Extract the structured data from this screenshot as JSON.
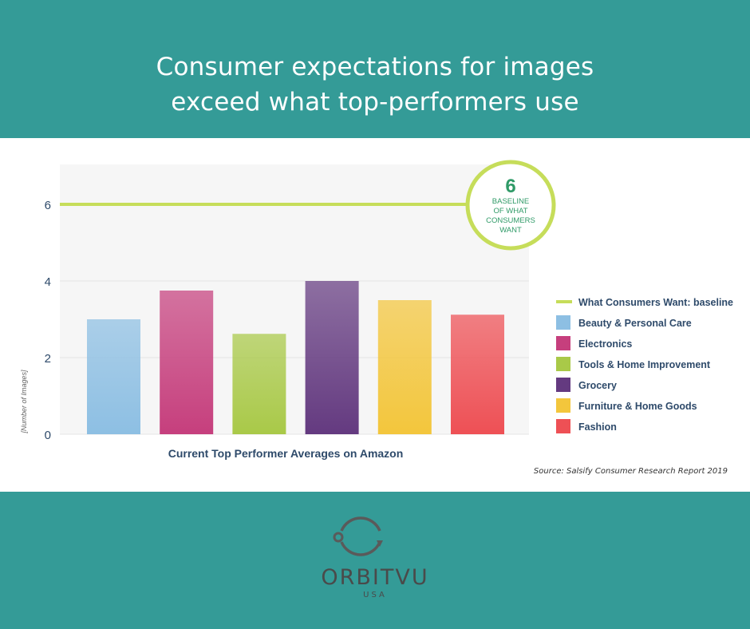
{
  "headline": {
    "line1": "Consumer expectations for images",
    "line2": "exceed what top-performers use"
  },
  "chart_data": {
    "type": "bar",
    "xlabel": "Current Top Performer Averages on Amazon",
    "ylabel": "[Number of Images]",
    "ylim": [
      0,
      7
    ],
    "yticks": [
      0,
      2,
      4,
      6
    ],
    "grid": true,
    "legend_position": "right",
    "series": [
      {
        "name": "Beauty & Personal Care",
        "value": 3.0,
        "color": "#8dbfe3"
      },
      {
        "name": "Electronics",
        "value": 3.75,
        "color": "#c63f7d"
      },
      {
        "name": "Tools & Home Improvement",
        "value": 2.62,
        "color": "#a9c948"
      },
      {
        "name": "Grocery",
        "value": 4.0,
        "color": "#643a80"
      },
      {
        "name": "Furniture & Home Goods",
        "value": 3.5,
        "color": "#f3c63c"
      },
      {
        "name": "Fashion",
        "value": 3.12,
        "color": "#ee5055"
      }
    ],
    "baseline": {
      "name": "What Consumers Want: baseline",
      "value": 6,
      "color": "#c6dd5a",
      "badge_value": "6",
      "badge_lines": [
        "BASELINE",
        "OF WHAT",
        "CONSUMERS",
        "WANT"
      ]
    }
  },
  "source": "Source: Salsify Consumer Research Report 2019",
  "logo": {
    "word": "ORBITVU",
    "sub": "USA"
  },
  "colors": {
    "band": "#349b97",
    "axis_text": "#2e4a6a",
    "badge_text": "#2f9a67"
  }
}
